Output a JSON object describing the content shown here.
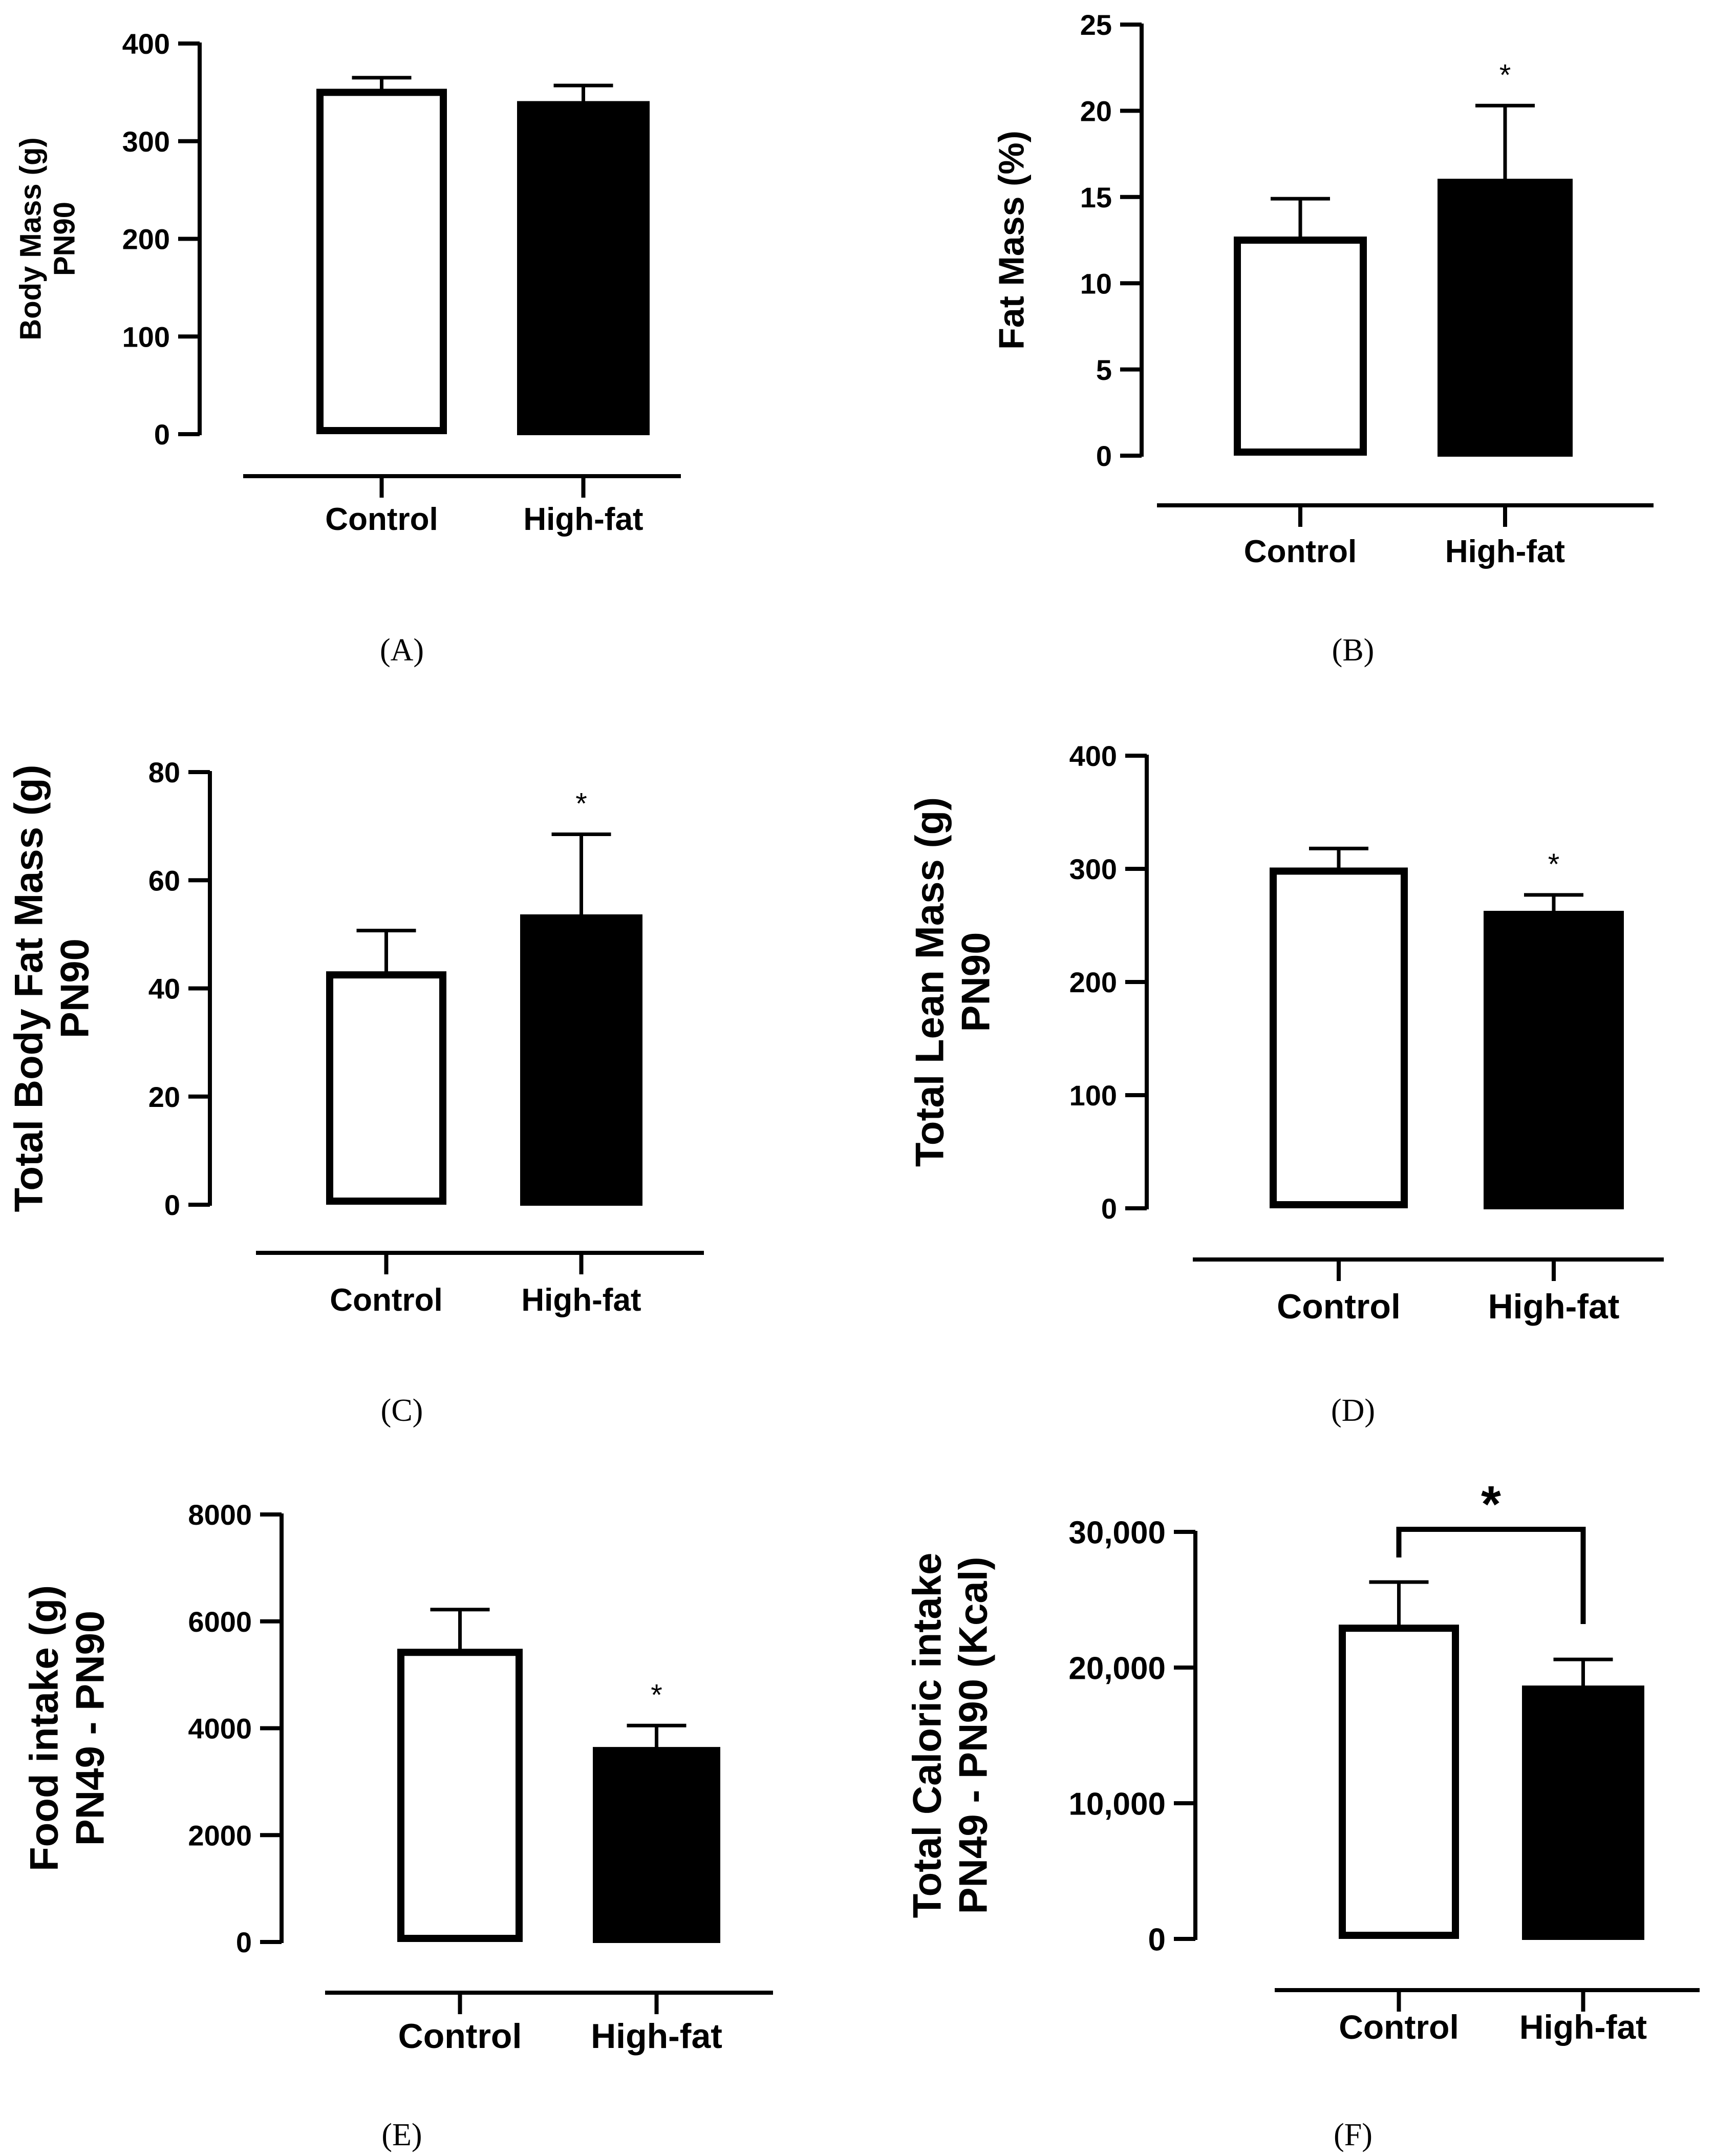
{
  "chart_data": [
    {
      "type": "bar",
      "panel_label": "(A)",
      "ylabel": [
        "Body Mass (g)",
        "PN90"
      ],
      "categories": [
        "Control",
        "High-fat"
      ],
      "values": [
        350,
        340
      ],
      "errors": [
        15,
        17
      ],
      "significance": [
        "",
        ""
      ],
      "ylim": [
        0,
        400
      ],
      "yticks": [
        0,
        100,
        200,
        300,
        400
      ],
      "ytick_labels": [
        "0",
        "100",
        "200",
        "300",
        "400"
      ],
      "fills": [
        "#ffffff",
        "#000000"
      ],
      "grid": false
    },
    {
      "type": "bar",
      "panel_label": "(B)",
      "ylabel": [
        "Fat Mass (%)"
      ],
      "categories": [
        "Control",
        "High-fat"
      ],
      "values": [
        12.5,
        16
      ],
      "errors": [
        2.4,
        4.3
      ],
      "significance": [
        "",
        "*"
      ],
      "ylim": [
        0,
        25
      ],
      "yticks": [
        0,
        5,
        10,
        15,
        20,
        25
      ],
      "ytick_labels": [
        "0",
        "5",
        "10",
        "15",
        "20",
        "25"
      ],
      "fills": [
        "#ffffff",
        "#000000"
      ],
      "grid": false
    },
    {
      "type": "bar",
      "panel_label": "(C)",
      "ylabel": [
        "Total Body Fat Mass (g)",
        "PN90"
      ],
      "categories": [
        "Control",
        "High-fat"
      ],
      "values": [
        42.5,
        53.5
      ],
      "errors": [
        8.2,
        15
      ],
      "significance": [
        "",
        "*"
      ],
      "ylim": [
        0,
        80
      ],
      "yticks": [
        0,
        20,
        40,
        60,
        80
      ],
      "ytick_labels": [
        "0",
        "20",
        "40",
        "60",
        "80"
      ],
      "fills": [
        "#ffffff",
        "#000000"
      ],
      "grid": false
    },
    {
      "type": "bar",
      "panel_label": "(D)",
      "ylabel": [
        "Total Lean Mass (g)",
        "PN90"
      ],
      "categories": [
        "Control",
        "High-fat"
      ],
      "values": [
        298,
        262
      ],
      "errors": [
        20,
        15
      ],
      "significance": [
        "",
        "*"
      ],
      "ylim": [
        0,
        400
      ],
      "yticks": [
        0,
        100,
        200,
        300,
        400
      ],
      "ytick_labels": [
        "0",
        "100",
        "200",
        "300",
        "400"
      ],
      "fills": [
        "#ffffff",
        "#000000"
      ],
      "grid": false
    },
    {
      "type": "bar",
      "panel_label": "(E)",
      "ylabel": [
        "Food intake (g)",
        "PN49 - PN90"
      ],
      "categories": [
        "Control",
        "High-fat"
      ],
      "values": [
        5420,
        3630
      ],
      "errors": [
        800,
        420
      ],
      "significance": [
        "",
        "*"
      ],
      "ylim": [
        0,
        8000
      ],
      "yticks": [
        0,
        2000,
        4000,
        6000,
        8000
      ],
      "ytick_labels": [
        "0",
        "2000",
        "4000",
        "6000",
        "8000"
      ],
      "fills": [
        "#ffffff",
        "#000000"
      ],
      "grid": false
    },
    {
      "type": "bar",
      "panel_label": "(F)",
      "ylabel": [
        "Total Caloric intake",
        "PN49 - PN90 (Kcal)"
      ],
      "categories": [
        "Control",
        "High-fat"
      ],
      "values": [
        22900,
        18600
      ],
      "errors": [
        3400,
        2000
      ],
      "significance": [
        "",
        ""
      ],
      "bracket_label": "*",
      "ylim": [
        0,
        30000
      ],
      "yticks": [
        0,
        10000,
        20000,
        30000
      ],
      "ytick_labels": [
        "0",
        "10,000",
        "20,000",
        "30,000"
      ],
      "fills": [
        "#ffffff",
        "#000000"
      ],
      "grid": false
    }
  ]
}
